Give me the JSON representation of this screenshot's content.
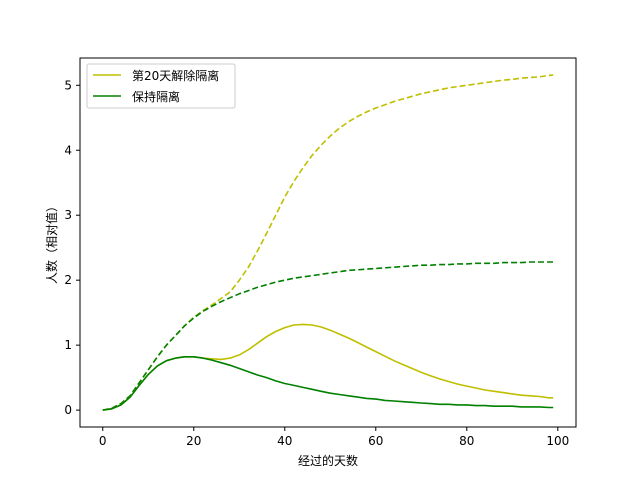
{
  "chart_data": {
    "type": "line",
    "xlabel": "经过的天数",
    "ylabel": "人数（相对值）",
    "xlim": [
      -5,
      104
    ],
    "ylim": [
      -0.26,
      5.42
    ],
    "xticks": [
      0,
      20,
      40,
      60,
      80,
      100
    ],
    "yticks": [
      0,
      1,
      2,
      3,
      4,
      5
    ],
    "grid": false,
    "legend_position": "top-left",
    "series": [
      {
        "name": "第20天解除隔离",
        "color": "#bfbf00",
        "style": "dashed",
        "x": [
          0,
          2,
          4,
          6,
          8,
          10,
          12,
          14,
          16,
          18,
          20,
          22,
          24,
          26,
          28,
          30,
          32,
          34,
          36,
          38,
          40,
          42,
          44,
          46,
          48,
          50,
          52,
          54,
          56,
          58,
          60,
          62,
          64,
          66,
          68,
          70,
          72,
          74,
          76,
          78,
          80,
          82,
          84,
          86,
          88,
          90,
          92,
          94,
          96,
          98,
          99
        ],
        "values": [
          0,
          0.03,
          0.1,
          0.22,
          0.42,
          0.62,
          0.82,
          1.0,
          1.15,
          1.3,
          1.43,
          1.53,
          1.62,
          1.72,
          1.82,
          2.0,
          2.2,
          2.45,
          2.72,
          3.0,
          3.28,
          3.52,
          3.73,
          3.92,
          4.08,
          4.22,
          4.34,
          4.44,
          4.52,
          4.59,
          4.65,
          4.7,
          4.75,
          4.79,
          4.83,
          4.87,
          4.9,
          4.93,
          4.96,
          4.98,
          5.0,
          5.02,
          5.04,
          5.06,
          5.08,
          5.09,
          5.11,
          5.12,
          5.13,
          5.15,
          5.16
        ]
      },
      {
        "name": "",
        "color": "#008000",
        "style": "dashed",
        "x": [
          0,
          2,
          4,
          6,
          8,
          10,
          12,
          14,
          16,
          18,
          20,
          22,
          24,
          26,
          28,
          30,
          32,
          34,
          36,
          38,
          40,
          42,
          44,
          46,
          48,
          50,
          52,
          54,
          56,
          58,
          60,
          62,
          64,
          66,
          68,
          70,
          72,
          74,
          76,
          78,
          80,
          82,
          84,
          86,
          88,
          90,
          92,
          94,
          96,
          98,
          99
        ],
        "values": [
          0,
          0.03,
          0.1,
          0.22,
          0.42,
          0.62,
          0.82,
          1.0,
          1.15,
          1.3,
          1.42,
          1.52,
          1.6,
          1.67,
          1.73,
          1.79,
          1.84,
          1.89,
          1.93,
          1.97,
          2.0,
          2.03,
          2.05,
          2.07,
          2.09,
          2.11,
          2.13,
          2.15,
          2.16,
          2.17,
          2.18,
          2.19,
          2.2,
          2.21,
          2.22,
          2.23,
          2.23,
          2.24,
          2.24,
          2.25,
          2.25,
          2.26,
          2.26,
          2.26,
          2.27,
          2.27,
          2.27,
          2.28,
          2.28,
          2.28,
          2.28
        ]
      },
      {
        "name": "",
        "color": "#bfbf00",
        "style": "solid",
        "x": [
          0,
          2,
          4,
          6,
          8,
          10,
          12,
          14,
          16,
          18,
          20,
          22,
          24,
          26,
          28,
          30,
          32,
          34,
          36,
          38,
          40,
          42,
          44,
          46,
          48,
          50,
          52,
          54,
          56,
          58,
          60,
          62,
          64,
          66,
          68,
          70,
          72,
          74,
          76,
          78,
          80,
          82,
          84,
          86,
          88,
          90,
          92,
          94,
          96,
          98,
          99
        ],
        "values": [
          0,
          0.02,
          0.08,
          0.2,
          0.38,
          0.55,
          0.68,
          0.76,
          0.8,
          0.82,
          0.82,
          0.8,
          0.79,
          0.78,
          0.8,
          0.85,
          0.93,
          1.03,
          1.13,
          1.21,
          1.27,
          1.31,
          1.32,
          1.31,
          1.28,
          1.23,
          1.17,
          1.11,
          1.04,
          0.97,
          0.9,
          0.83,
          0.76,
          0.7,
          0.64,
          0.58,
          0.53,
          0.48,
          0.44,
          0.4,
          0.37,
          0.34,
          0.31,
          0.29,
          0.27,
          0.25,
          0.23,
          0.22,
          0.21,
          0.19,
          0.19
        ]
      },
      {
        "name": "保持隔离",
        "color": "#008000",
        "style": "solid",
        "x": [
          0,
          2,
          4,
          6,
          8,
          10,
          12,
          14,
          16,
          18,
          20,
          22,
          24,
          26,
          28,
          30,
          32,
          34,
          36,
          38,
          40,
          42,
          44,
          46,
          48,
          50,
          52,
          54,
          56,
          58,
          60,
          62,
          64,
          66,
          68,
          70,
          72,
          74,
          76,
          78,
          80,
          82,
          84,
          86,
          88,
          90,
          92,
          94,
          96,
          98,
          99
        ],
        "values": [
          0,
          0.02,
          0.08,
          0.2,
          0.38,
          0.55,
          0.68,
          0.76,
          0.8,
          0.82,
          0.82,
          0.8,
          0.77,
          0.73,
          0.69,
          0.64,
          0.59,
          0.54,
          0.5,
          0.45,
          0.41,
          0.38,
          0.35,
          0.32,
          0.29,
          0.26,
          0.24,
          0.22,
          0.2,
          0.18,
          0.17,
          0.15,
          0.14,
          0.13,
          0.12,
          0.11,
          0.1,
          0.09,
          0.09,
          0.08,
          0.08,
          0.07,
          0.07,
          0.06,
          0.06,
          0.06,
          0.05,
          0.05,
          0.05,
          0.04,
          0.04
        ]
      }
    ]
  }
}
